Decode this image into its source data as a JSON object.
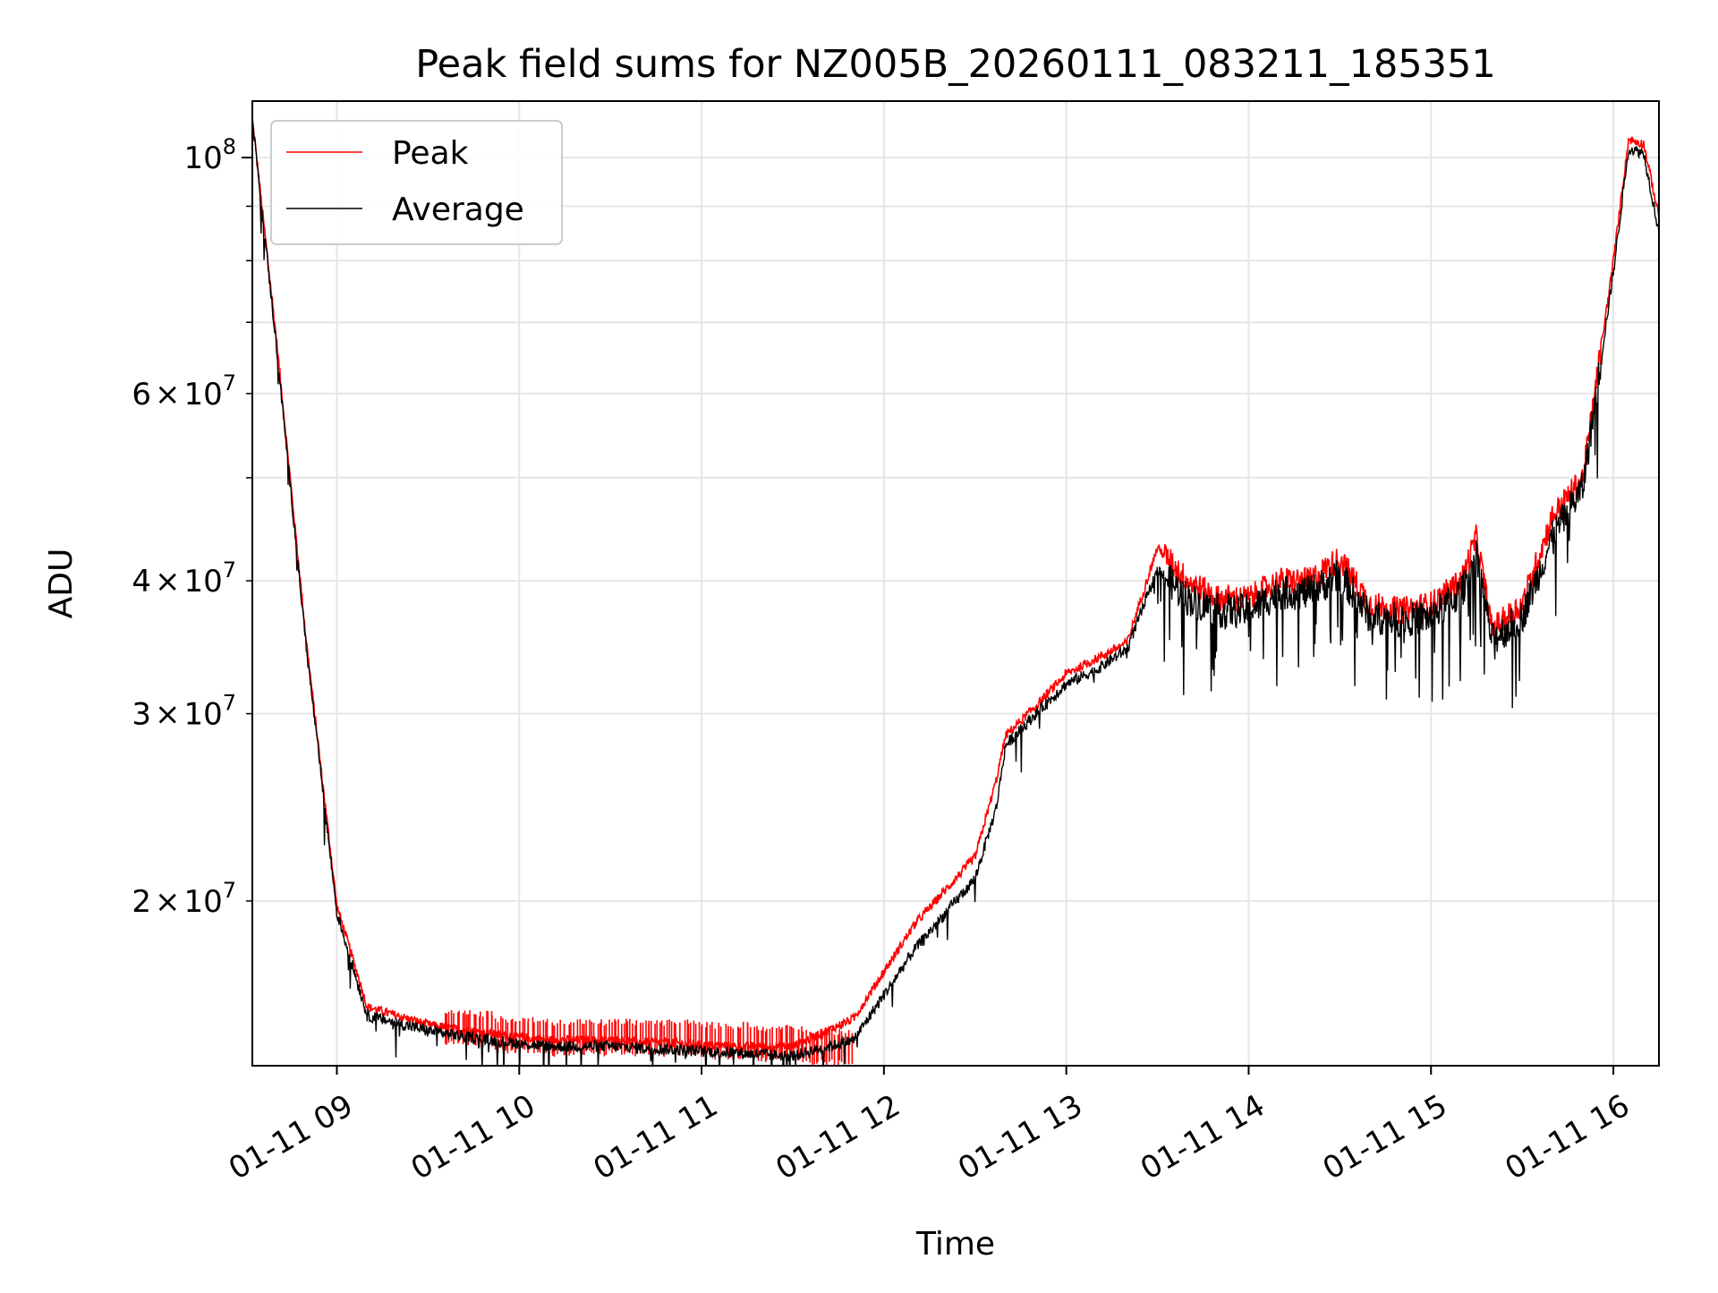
{
  "chart_data": {
    "type": "line",
    "title": "Peak field sums for NZ005B_20260111_083211_185351",
    "xlabel": "Time",
    "ylabel": "ADU",
    "yscale": "log",
    "grid": true,
    "legend_position": "top-left",
    "xlim": [
      "2026-01-11 08:32:11",
      "2026-01-11 16:15:00"
    ],
    "ylim": [
      14000000,
      113000000
    ],
    "x_ticks": [
      {
        "value": "2026-01-11 09:00",
        "label": "01-11 09"
      },
      {
        "value": "2026-01-11 10:00",
        "label": "01-11 10"
      },
      {
        "value": "2026-01-11 11:00",
        "label": "01-11 11"
      },
      {
        "value": "2026-01-11 12:00",
        "label": "01-11 12"
      },
      {
        "value": "2026-01-11 13:00",
        "label": "01-11 13"
      },
      {
        "value": "2026-01-11 14:00",
        "label": "01-11 14"
      },
      {
        "value": "2026-01-11 15:00",
        "label": "01-11 15"
      },
      {
        "value": "2026-01-11 16:00",
        "label": "01-11 16"
      }
    ],
    "y_ticks_major": [
      {
        "value": 100000000,
        "base": "10",
        "exp": "8"
      }
    ],
    "y_ticks_minor_labeled": [
      {
        "value": 20000000,
        "mant": "2",
        "base": "10",
        "exp": "7"
      },
      {
        "value": 30000000,
        "mant": "3",
        "base": "10",
        "exp": "7"
      },
      {
        "value": 40000000,
        "mant": "4",
        "base": "10",
        "exp": "7"
      },
      {
        "value": 60000000,
        "mant": "6",
        "base": "10",
        "exp": "7"
      }
    ],
    "y_ticks_minor_unlabeled": [
      50000000,
      70000000,
      80000000,
      90000000
    ],
    "series": [
      {
        "name": "Peak",
        "color": "#ff0000",
        "x": [
          "2026-01-11 08:32",
          "2026-01-11 08:40",
          "2026-01-11 08:50",
          "2026-01-11 09:00",
          "2026-01-11 09:10",
          "2026-01-11 09:30",
          "2026-01-11 09:50",
          "2026-01-11 10:10",
          "2026-01-11 10:30",
          "2026-01-11 10:50",
          "2026-01-11 11:10",
          "2026-01-11 11:30",
          "2026-01-11 11:50",
          "2026-01-11 12:10",
          "2026-01-11 12:30",
          "2026-01-11 12:37",
          "2026-01-11 12:40",
          "2026-01-11 12:50",
          "2026-01-11 13:00",
          "2026-01-11 13:10",
          "2026-01-11 13:20",
          "2026-01-11 13:30",
          "2026-01-11 13:40",
          "2026-01-11 13:50",
          "2026-01-11 14:00",
          "2026-01-11 14:10",
          "2026-01-11 14:20",
          "2026-01-11 14:30",
          "2026-01-11 14:40",
          "2026-01-11 14:50",
          "2026-01-11 15:00",
          "2026-01-11 15:10",
          "2026-01-11 15:15",
          "2026-01-11 15:20",
          "2026-01-11 15:30",
          "2026-01-11 15:40",
          "2026-01-11 15:50",
          "2026-01-11 16:00",
          "2026-01-11 16:05",
          "2026-01-11 16:10",
          "2026-01-11 16:15"
        ],
        "values": [
          110000000,
          68000000,
          35000000,
          19800000,
          15900000,
          15300000,
          15000000,
          14800000,
          14800000,
          14700000,
          14600000,
          14600000,
          15500000,
          19000000,
          22000000,
          26000000,
          28600000,
          30500000,
          32700000,
          33800000,
          35000000,
          43000000,
          40000000,
          38500000,
          38500000,
          40000000,
          40000000,
          42000000,
          38000000,
          37500000,
          38000000,
          40000000,
          44000000,
          36000000,
          38000000,
          46000000,
          50000000,
          80000000,
          104000000,
          103000000,
          88000000
        ]
      },
      {
        "name": "Average",
        "color": "#000000",
        "x": [
          "2026-01-11 08:32",
          "2026-01-11 08:40",
          "2026-01-11 08:50",
          "2026-01-11 09:00",
          "2026-01-11 09:10",
          "2026-01-11 09:30",
          "2026-01-11 09:50",
          "2026-01-11 10:10",
          "2026-01-11 10:30",
          "2026-01-11 10:50",
          "2026-01-11 11:10",
          "2026-01-11 11:30",
          "2026-01-11 11:50",
          "2026-01-11 12:10",
          "2026-01-11 12:30",
          "2026-01-11 12:37",
          "2026-01-11 12:40",
          "2026-01-11 12:50",
          "2026-01-11 13:00",
          "2026-01-11 13:10",
          "2026-01-11 13:20",
          "2026-01-11 13:30",
          "2026-01-11 13:40",
          "2026-01-11 13:50",
          "2026-01-11 14:00",
          "2026-01-11 14:10",
          "2026-01-11 14:20",
          "2026-01-11 14:30",
          "2026-01-11 14:40",
          "2026-01-11 14:50",
          "2026-01-11 15:00",
          "2026-01-11 15:10",
          "2026-01-11 15:15",
          "2026-01-11 15:20",
          "2026-01-11 15:30",
          "2026-01-11 15:40",
          "2026-01-11 15:50",
          "2026-01-11 16:00",
          "2026-01-11 16:05",
          "2026-01-11 16:10",
          "2026-01-11 16:15"
        ],
        "values": [
          110000000,
          67000000,
          34500000,
          19500000,
          15600000,
          15100000,
          14800000,
          14600000,
          14600000,
          14500000,
          14400000,
          14300000,
          14800000,
          18000000,
          21000000,
          24500000,
          28000000,
          30000000,
          32000000,
          33000000,
          34500000,
          41000000,
          38500000,
          37500000,
          37500000,
          39000000,
          39000000,
          40500000,
          37000000,
          36800000,
          37000000,
          39000000,
          42500000,
          35200000,
          37000000,
          44000000,
          49000000,
          78000000,
          102000000,
          101000000,
          85000000
        ]
      }
    ],
    "peak_spikes": {
      "x_start": "2026-01-11 09:35",
      "x_end": "2026-01-11 11:50",
      "top": [
        15800000,
        15600000,
        15500000,
        15500000,
        15500000,
        15400000,
        15300000,
        15200000
      ]
    }
  }
}
